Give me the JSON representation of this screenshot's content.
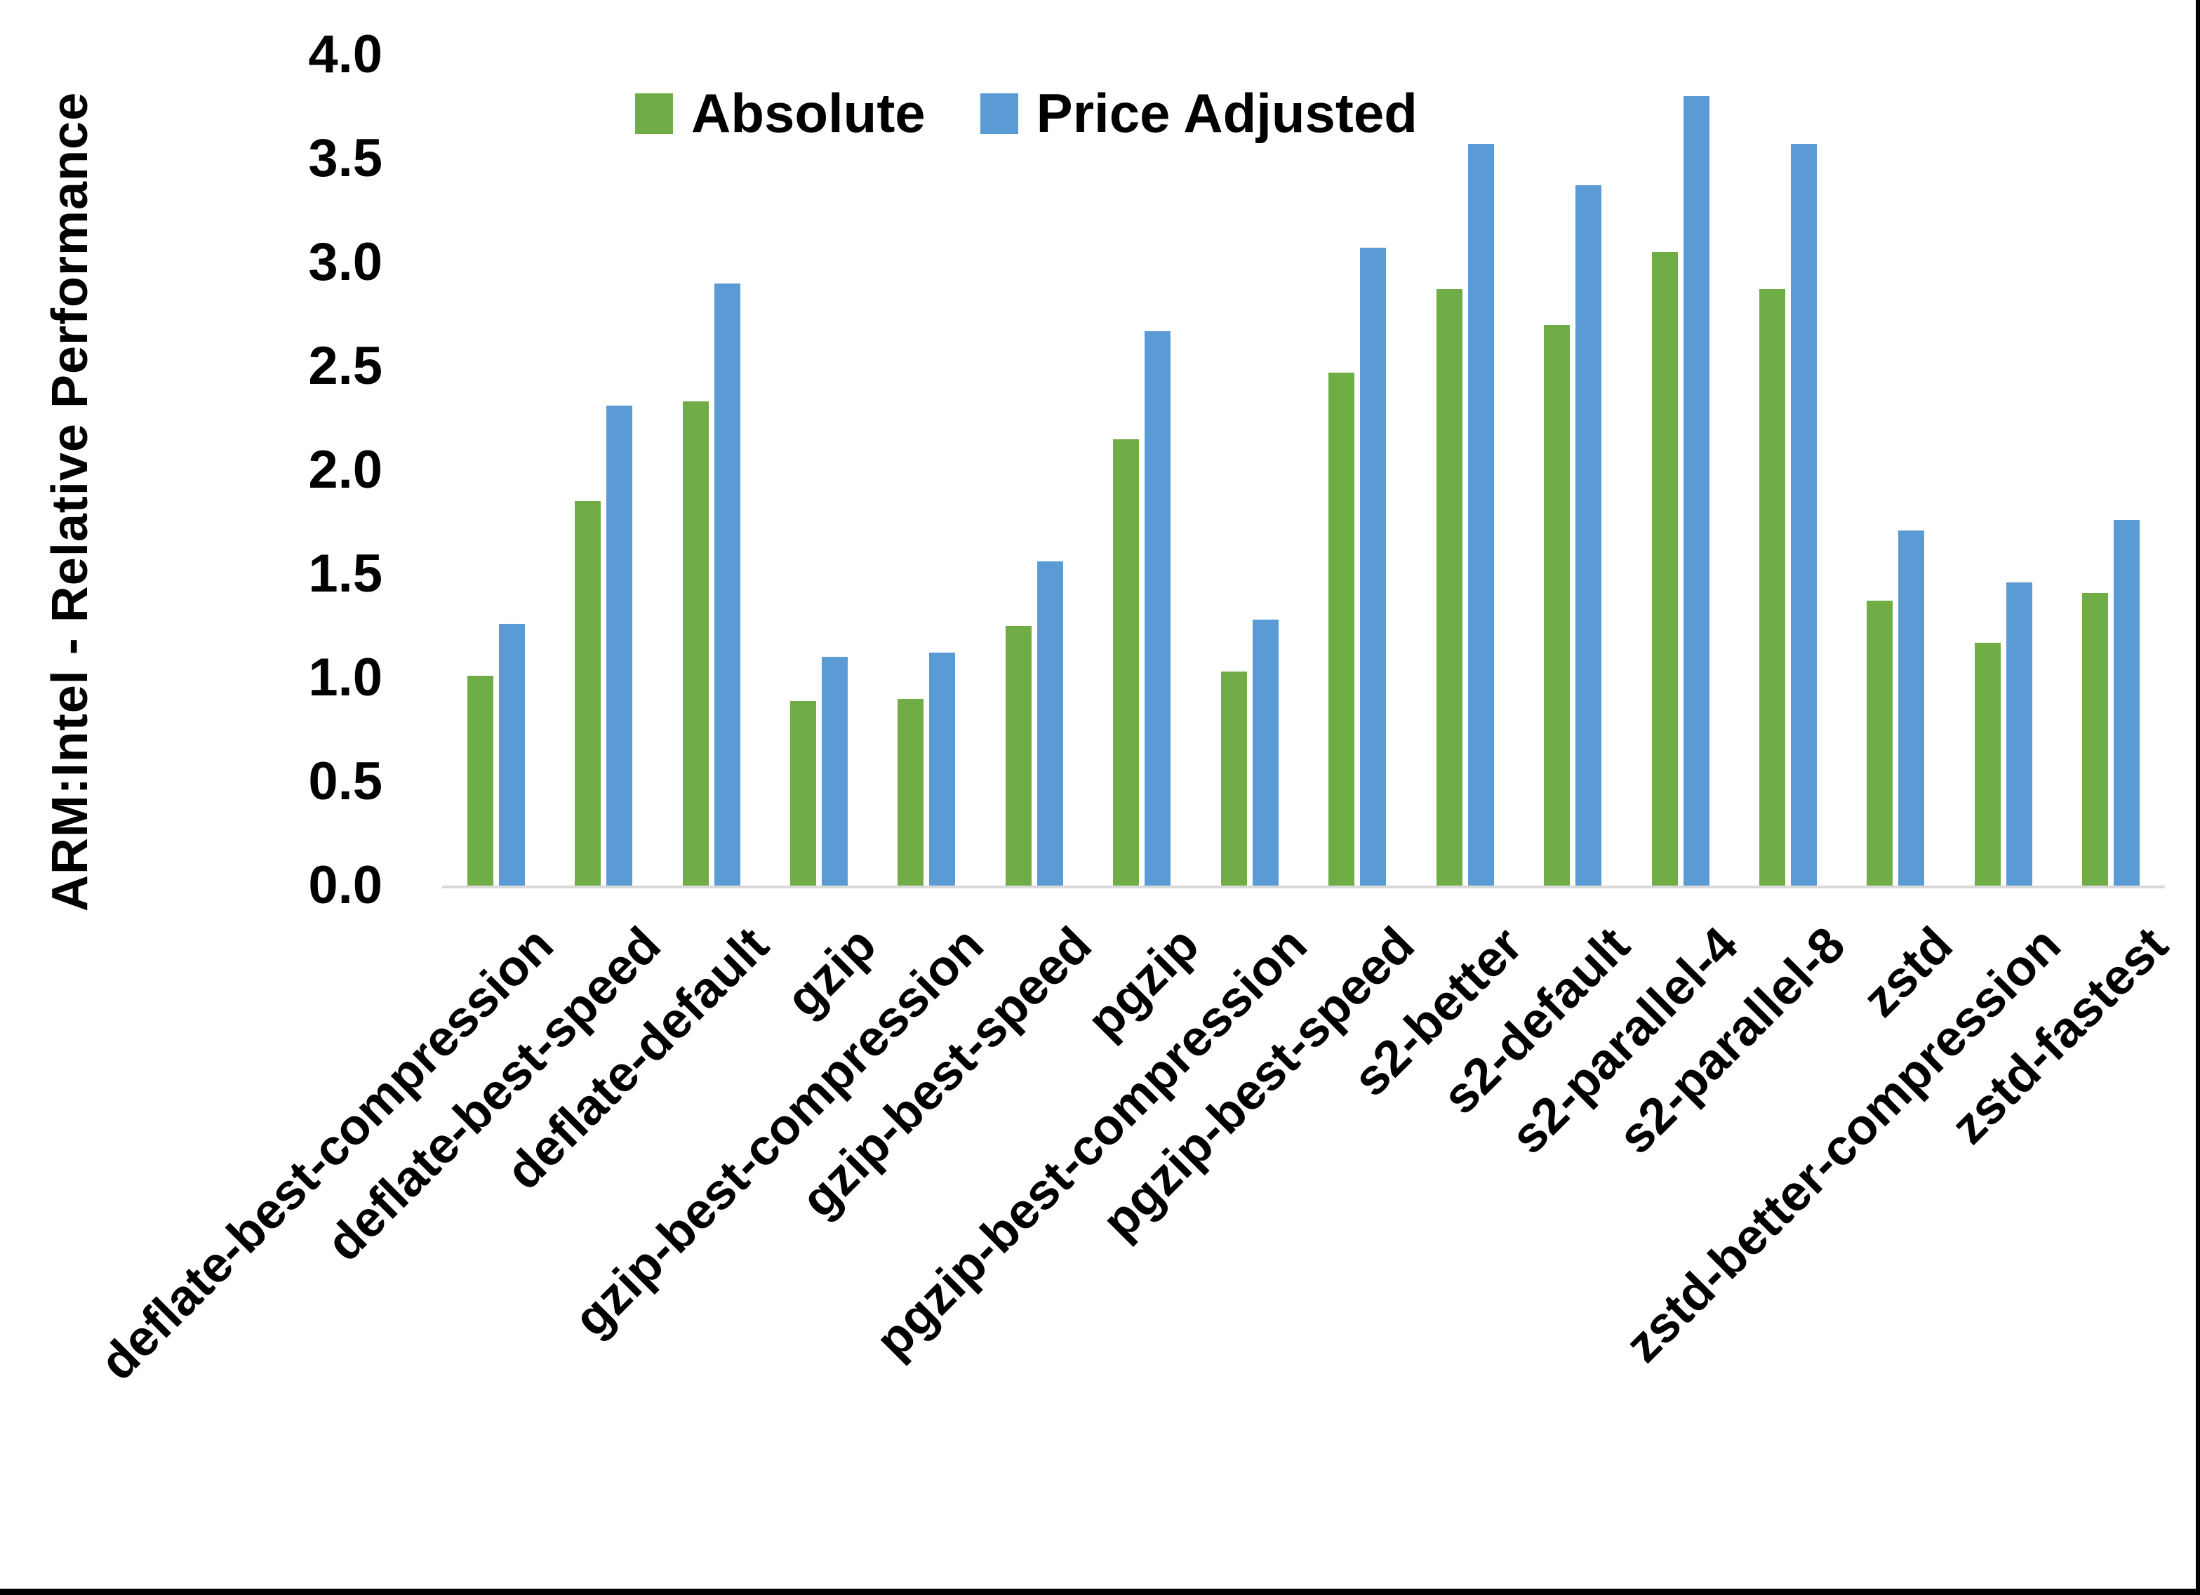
{
  "figure": {
    "background": "#FFFFFF",
    "edge_color": "#000000",
    "text_color": "#000000",
    "axis_line_color": "#D9D9D9"
  },
  "chart_data": {
    "type": "bar",
    "title": "",
    "xlabel": "",
    "ylabel": "ARM:Intel - Relative Performance",
    "ylim": [
      0.0,
      4.0
    ],
    "ytick_step": 0.5,
    "ytick_labels": [
      "0.0",
      "0.5",
      "1.0",
      "1.5",
      "2.0",
      "2.5",
      "3.0",
      "3.5",
      "4.0"
    ],
    "grid": false,
    "legend_position": "top-inside-left",
    "categories": [
      "deflate-best-compression",
      "deflate-best-speed",
      "deflate-default",
      "gzip",
      "gzip-best-compression",
      "gzip-best-speed",
      "pgzip",
      "pgzip-best-compression",
      "pgzip-best-speed",
      "s2-better",
      "s2-default",
      "s2-parallel-4",
      "s2-parallel-8",
      "zstd",
      "zstd-better-compression",
      "zstd-fastest"
    ],
    "series": [
      {
        "name": "Absolute",
        "color": "#70AD47",
        "values": [
          1.01,
          1.85,
          2.33,
          0.89,
          0.9,
          1.25,
          2.15,
          1.03,
          2.47,
          2.87,
          2.7,
          3.05,
          2.87,
          1.37,
          1.17,
          1.41
        ]
      },
      {
        "name": "Price Adjusted",
        "color": "#5B9BD5",
        "values": [
          1.26,
          2.31,
          2.9,
          1.1,
          1.12,
          1.56,
          2.67,
          1.28,
          3.07,
          3.57,
          3.37,
          3.8,
          3.57,
          1.71,
          1.46,
          1.76
        ]
      }
    ]
  }
}
